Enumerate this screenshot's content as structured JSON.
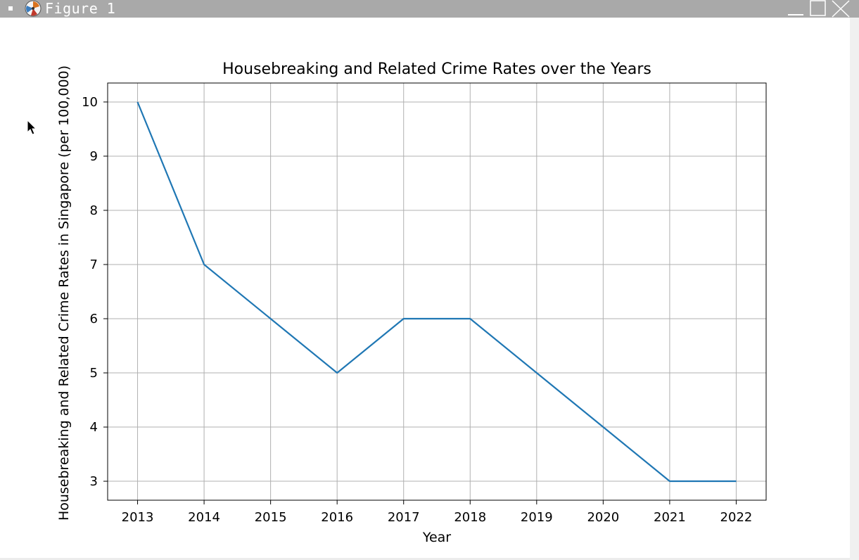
{
  "window": {
    "title": "Figure 1",
    "controls": [
      "minimize-icon",
      "maximize-icon",
      "close-icon"
    ]
  },
  "chart_data": {
    "type": "line",
    "title": "Housebreaking and Related Crime Rates over the Years",
    "xlabel": "Year",
    "ylabel": "Housebreaking and Related Crime Rates in Singapore (per 100,000)",
    "x": [
      "2013",
      "2014",
      "2015",
      "2016",
      "2017",
      "2018",
      "2019",
      "2020",
      "2021",
      "2022"
    ],
    "series": [
      {
        "values": [
          10,
          7,
          6,
          5,
          6,
          6,
          5,
          4,
          3,
          3
        ],
        "color": "#1f77b4"
      }
    ],
    "yticks": [
      "3",
      "4",
      "5",
      "6",
      "7",
      "8",
      "9",
      "10"
    ],
    "ylim": [
      2.65,
      10.35
    ],
    "xlim": [
      2012.55,
      2022.45
    ],
    "grid": true
  }
}
